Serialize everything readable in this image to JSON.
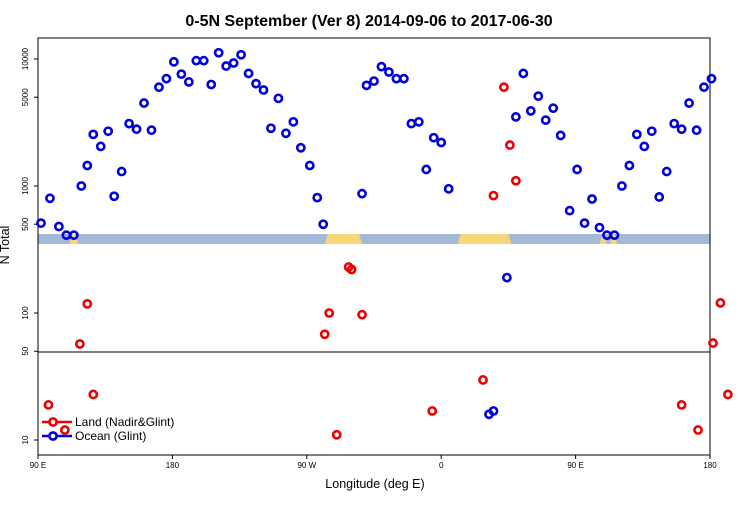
{
  "chart_data": {
    "type": "scatter",
    "title": "0-5N September (Ver 8)   2014-09-06 to 2017-06-30",
    "xlabel": "Longitude (deg E)",
    "ylabel": "N Total",
    "x_ticks": [
      {
        "value": 90,
        "label": "90 E"
      },
      {
        "value": 180,
        "label": "180"
      },
      {
        "value": 270,
        "label": "90 W"
      },
      {
        "value": 360,
        "label": "0"
      },
      {
        "value": 450,
        "label": "90 E"
      },
      {
        "value": 540,
        "label": "180"
      }
    ],
    "xlim": [
      90,
      540
    ],
    "y_scale": "broken-log",
    "y_ticks_upper": [
      {
        "value": 50,
        "label": "50"
      },
      {
        "value": 100,
        "label": "100"
      },
      {
        "value": 500,
        "label": "500"
      },
      {
        "value": 1000,
        "label": "1000"
      },
      {
        "value": 5000,
        "label": "5000"
      },
      {
        "value": 10000,
        "label": "10000"
      }
    ],
    "y_ticks_lower": [
      {
        "value": 10,
        "label": "10"
      }
    ],
    "legend": {
      "placement": "bottom-left",
      "entries": [
        {
          "label": "Land (Nadir&Glint)",
          "color": "#ee0000"
        },
        {
          "label": "Ocean (Glint)",
          "color": "#0000dd"
        }
      ]
    },
    "colors": {
      "land": "#ee0000",
      "ocean": "#0000dd",
      "band_ocean": "#a4b8d8",
      "band_land": "#f7d77a"
    },
    "land_band": [
      [
        111,
        117
      ],
      [
        282,
        307
      ],
      [
        371,
        407
      ],
      [
        466,
        471
      ],
      [
        473,
        478
      ]
    ],
    "series": [
      {
        "name": "Land (Nadir&Glint)",
        "color": "#ee0000",
        "points": [
          [
            97,
            19
          ],
          [
            108,
            12
          ],
          [
            118,
            57
          ],
          [
            123,
            118
          ],
          [
            127,
            23
          ],
          [
            282,
            68
          ],
          [
            285,
            100
          ],
          [
            290,
            11
          ],
          [
            298,
            230
          ],
          [
            300,
            220
          ],
          [
            307,
            97
          ],
          [
            354,
            17
          ],
          [
            388,
            30
          ],
          [
            395,
            840
          ],
          [
            402,
            6000
          ],
          [
            406,
            2100
          ],
          [
            410,
            1100
          ],
          [
            521,
            19
          ],
          [
            532,
            12
          ],
          [
            542,
            58
          ],
          [
            547,
            120
          ],
          [
            552,
            23
          ]
        ]
      },
      {
        "name": "Ocean (Glint)",
        "color": "#0000dd",
        "points": [
          [
            92,
            510
          ],
          [
            98,
            800
          ],
          [
            104,
            480
          ],
          [
            109,
            410
          ],
          [
            114,
            410
          ],
          [
            119,
            1000
          ],
          [
            123,
            1450
          ],
          [
            127,
            2550
          ],
          [
            132,
            2050
          ],
          [
            137,
            2700
          ],
          [
            141,
            830
          ],
          [
            146,
            1300
          ],
          [
            151,
            3100
          ],
          [
            156,
            2800
          ],
          [
            161,
            4500
          ],
          [
            166,
            2750
          ],
          [
            171,
            6000
          ],
          [
            176,
            7000
          ],
          [
            181,
            9500
          ],
          [
            186,
            7600
          ],
          [
            191,
            6600
          ],
          [
            196,
            9700
          ],
          [
            201,
            9700
          ],
          [
            206,
            6300
          ],
          [
            211,
            11200
          ],
          [
            216,
            8800
          ],
          [
            221,
            9300
          ],
          [
            226,
            10800
          ],
          [
            231,
            7700
          ],
          [
            236,
            6400
          ],
          [
            241,
            5700
          ],
          [
            246,
            2850
          ],
          [
            251,
            4900
          ],
          [
            256,
            2600
          ],
          [
            261,
            3200
          ],
          [
            266,
            2000
          ],
          [
            272,
            1450
          ],
          [
            277,
            810
          ],
          [
            281,
            500
          ],
          [
            307,
            870
          ],
          [
            310,
            6200
          ],
          [
            315,
            6700
          ],
          [
            320,
            8700
          ],
          [
            325,
            7900
          ],
          [
            330,
            7000
          ],
          [
            335,
            7000
          ],
          [
            340,
            3100
          ],
          [
            345,
            3200
          ],
          [
            350,
            1350
          ],
          [
            355,
            2400
          ],
          [
            360,
            2200
          ],
          [
            365,
            950
          ],
          [
            392,
            16
          ],
          [
            395,
            17
          ],
          [
            404,
            190
          ],
          [
            410,
            3500
          ],
          [
            415,
            7700
          ],
          [
            420,
            3900
          ],
          [
            425,
            5100
          ],
          [
            430,
            3300
          ],
          [
            435,
            4100
          ],
          [
            440,
            2500
          ],
          [
            446,
            640
          ],
          [
            451,
            1350
          ],
          [
            456,
            510
          ],
          [
            461,
            790
          ],
          [
            466,
            470
          ],
          [
            471,
            410
          ],
          [
            476,
            410
          ],
          [
            481,
            1000
          ],
          [
            486,
            1450
          ],
          [
            491,
            2550
          ],
          [
            496,
            2050
          ],
          [
            501,
            2700
          ],
          [
            506,
            820
          ],
          [
            511,
            1300
          ],
          [
            516,
            3100
          ],
          [
            521,
            2800
          ],
          [
            526,
            4500
          ],
          [
            531,
            2750
          ],
          [
            536,
            6000
          ],
          [
            541,
            7000
          ]
        ]
      }
    ]
  }
}
